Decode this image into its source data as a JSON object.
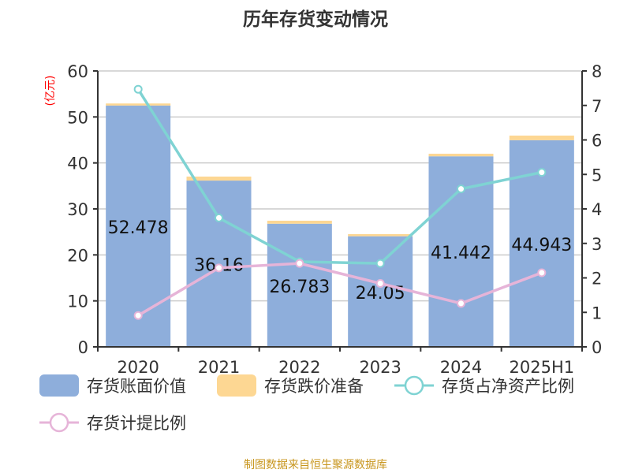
{
  "chart_data": {
    "type": "bar",
    "title": "历年存货变动情况",
    "ylabel": "(亿元)",
    "categories": [
      "2020",
      "2021",
      "2022",
      "2023",
      "2024",
      "2025H1"
    ],
    "ylim": [
      0,
      60
    ],
    "y_ticks": [
      0,
      10,
      20,
      30,
      40,
      50,
      60
    ],
    "y2lim": [
      0,
      8
    ],
    "y2_ticks": [
      0,
      1,
      2,
      3,
      4,
      5,
      6,
      7,
      8
    ],
    "grid": true,
    "legend_placement": "bottom",
    "stacked_series": [
      {
        "name": "存货账面价值",
        "color": "#8eaedb",
        "values": [
          52.478,
          36.16,
          26.783,
          24.05,
          41.442,
          44.943
        ],
        "labels": [
          "52.478",
          "36.16",
          "26.783",
          "24.05",
          "41.442",
          "44.943"
        ]
      },
      {
        "name": "存货跌价准备",
        "color": "#fdd793",
        "values": [
          0.45,
          0.87,
          0.65,
          0.47,
          0.56,
          1.0
        ]
      }
    ],
    "line_series": [
      {
        "name": "存货占净资产比例",
        "color": "#7fd3d3",
        "axis": "right",
        "values": [
          7.47,
          3.74,
          2.47,
          2.42,
          4.58,
          5.06
        ]
      },
      {
        "name": "存货计提比例",
        "color": "#e6b4d8",
        "axis": "right",
        "values": [
          0.91,
          2.29,
          2.42,
          1.84,
          1.26,
          2.15
        ]
      }
    ],
    "source": "制图数据来自恒生聚源数据库",
    "source_color": "#c8961e",
    "ylabel_color": "#ff0000"
  }
}
